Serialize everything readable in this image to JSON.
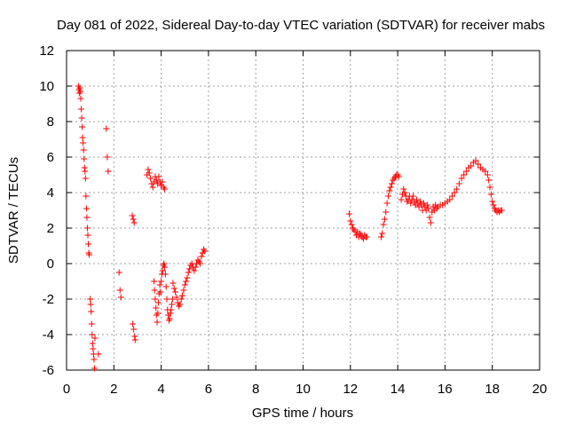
{
  "chart_data": {
    "type": "scatter",
    "title": "Day 081 of 2022, Sidereal Day-to-day VTEC variation (SDTVAR) for receiver mabs",
    "xlabel": "GPS time / hours",
    "ylabel": "SDTVAR / TECUs",
    "xlim": [
      0,
      20
    ],
    "ylim": [
      -6,
      12
    ],
    "grid": true,
    "marker": "+",
    "color": "#ff0000",
    "xticks": [
      {
        "value": 0,
        "label": "0"
      },
      {
        "value": 2,
        "label": "2"
      },
      {
        "value": 4,
        "label": "4"
      },
      {
        "value": 6,
        "label": "6"
      },
      {
        "value": 8,
        "label": "8"
      },
      {
        "value": 10,
        "label": "10"
      },
      {
        "value": 12,
        "label": "12"
      },
      {
        "value": 14,
        "label": "14"
      },
      {
        "value": 16,
        "label": "16"
      },
      {
        "value": 18,
        "label": "18"
      },
      {
        "value": 20,
        "label": "20"
      }
    ],
    "yticks": [
      {
        "value": -6,
        "label": "-6"
      },
      {
        "value": -4,
        "label": "-4"
      },
      {
        "value": -2,
        "label": "-2"
      },
      {
        "value": 0,
        "label": "0"
      },
      {
        "value": 2,
        "label": "2"
      },
      {
        "value": 4,
        "label": "4"
      },
      {
        "value": 6,
        "label": "6"
      },
      {
        "value": 8,
        "label": "8"
      },
      {
        "value": 10,
        "label": "10"
      },
      {
        "value": 12,
        "label": "12"
      }
    ],
    "series": [
      {
        "name": "SDTVAR",
        "points": [
          [
            0.5,
            10.0
          ],
          [
            0.52,
            9.8
          ],
          [
            0.54,
            9.6
          ],
          [
            0.56,
            9.9
          ],
          [
            0.58,
            9.7
          ],
          [
            0.6,
            9.3
          ],
          [
            0.62,
            8.7
          ],
          [
            0.64,
            8.2
          ],
          [
            0.66,
            7.7
          ],
          [
            0.68,
            7.1
          ],
          [
            0.7,
            6.8
          ],
          [
            0.72,
            6.4
          ],
          [
            0.74,
            5.9
          ],
          [
            0.76,
            5.4
          ],
          [
            0.78,
            5.2
          ],
          [
            0.8,
            4.8
          ],
          [
            0.82,
            3.8
          ],
          [
            0.84,
            3.1
          ],
          [
            0.86,
            2.6
          ],
          [
            0.88,
            2.0
          ],
          [
            0.9,
            1.6
          ],
          [
            0.92,
            1.1
          ],
          [
            0.94,
            0.6
          ],
          [
            0.96,
            0.5
          ],
          [
            1.0,
            -2.0
          ],
          [
            1.02,
            -2.3
          ],
          [
            1.04,
            -2.7
          ],
          [
            1.06,
            -3.4
          ],
          [
            1.08,
            -4.0
          ],
          [
            1.1,
            -4.5
          ],
          [
            1.12,
            -4.8
          ],
          [
            1.14,
            -5.1
          ],
          [
            1.16,
            -5.4
          ],
          [
            1.18,
            -5.9
          ],
          [
            1.2,
            -4.2
          ],
          [
            1.35,
            -5.1
          ],
          [
            1.68,
            7.6
          ],
          [
            1.72,
            6.0
          ],
          [
            1.76,
            5.2
          ],
          [
            2.22,
            -0.5
          ],
          [
            2.26,
            -1.5
          ],
          [
            2.3,
            -1.9
          ],
          [
            2.78,
            2.7
          ],
          [
            2.82,
            2.5
          ],
          [
            2.86,
            2.3
          ],
          [
            2.8,
            -3.4
          ],
          [
            2.84,
            -3.7
          ],
          [
            2.88,
            -4.1
          ],
          [
            2.9,
            -4.3
          ],
          [
            3.4,
            5.0
          ],
          [
            3.45,
            5.3
          ],
          [
            3.5,
            5.1
          ],
          [
            3.55,
            4.8
          ],
          [
            3.6,
            4.5
          ],
          [
            3.65,
            4.3
          ],
          [
            3.7,
            4.6
          ],
          [
            3.75,
            4.9
          ],
          [
            3.8,
            4.7
          ],
          [
            3.85,
            4.5
          ],
          [
            3.9,
            4.9
          ],
          [
            3.95,
            4.6
          ],
          [
            4.0,
            4.4
          ],
          [
            4.05,
            4.6
          ],
          [
            4.1,
            4.3
          ],
          [
            4.15,
            4.2
          ],
          [
            3.7,
            -1.0
          ],
          [
            3.72,
            -1.5
          ],
          [
            3.75,
            -2.0
          ],
          [
            3.78,
            -2.5
          ],
          [
            3.8,
            -2.9
          ],
          [
            3.83,
            -3.3
          ],
          [
            3.86,
            -2.8
          ],
          [
            3.88,
            -2.2
          ],
          [
            3.91,
            -1.7
          ],
          [
            3.94,
            -1.2
          ],
          [
            3.97,
            -1.6
          ],
          [
            4.0,
            -1.0
          ],
          [
            4.03,
            -0.6
          ],
          [
            4.06,
            -0.4
          ],
          [
            4.09,
            -0.1
          ],
          [
            4.12,
            0.0
          ],
          [
            4.15,
            -0.2
          ],
          [
            4.18,
            -0.6
          ],
          [
            4.21,
            -1.3
          ],
          [
            4.24,
            -2.0
          ],
          [
            4.27,
            -2.6
          ],
          [
            4.3,
            -2.9
          ],
          [
            4.33,
            -3.2
          ],
          [
            4.36,
            -3.1
          ],
          [
            4.39,
            -2.8
          ],
          [
            4.42,
            -2.6
          ],
          [
            4.45,
            -2.3
          ],
          [
            4.48,
            -2.0
          ],
          [
            4.5,
            -1.1
          ],
          [
            4.55,
            -1.4
          ],
          [
            4.6,
            -1.6
          ],
          [
            4.65,
            -1.9
          ],
          [
            4.7,
            -2.2
          ],
          [
            4.75,
            -2.4
          ],
          [
            4.8,
            -2.3
          ],
          [
            4.85,
            -2.0
          ],
          [
            4.9,
            -1.8
          ],
          [
            4.95,
            -1.5
          ],
          [
            5.0,
            -1.2
          ],
          [
            5.05,
            -1.0
          ],
          [
            5.1,
            -0.8
          ],
          [
            5.15,
            -0.5
          ],
          [
            5.2,
            -0.3
          ],
          [
            5.25,
            -0.1
          ],
          [
            5.3,
            0.0
          ],
          [
            5.35,
            -0.2
          ],
          [
            5.4,
            -0.4
          ],
          [
            5.45,
            -0.2
          ],
          [
            5.5,
            0.0
          ],
          [
            5.55,
            0.2
          ],
          [
            5.6,
            0.1
          ],
          [
            5.65,
            0.0
          ],
          [
            5.7,
            0.4
          ],
          [
            5.75,
            0.6
          ],
          [
            5.8,
            0.8
          ],
          [
            5.85,
            0.7
          ],
          [
            11.95,
            2.8
          ],
          [
            12.0,
            2.4
          ],
          [
            12.05,
            2.2
          ],
          [
            12.1,
            2.0
          ],
          [
            12.15,
            1.9
          ],
          [
            12.2,
            1.8
          ],
          [
            12.25,
            1.6
          ],
          [
            12.3,
            1.8
          ],
          [
            12.35,
            1.5
          ],
          [
            12.4,
            1.7
          ],
          [
            12.45,
            1.6
          ],
          [
            12.5,
            1.5
          ],
          [
            12.55,
            1.4
          ],
          [
            12.6,
            1.6
          ],
          [
            12.65,
            1.5
          ],
          [
            12.7,
            1.5
          ],
          [
            13.3,
            1.5
          ],
          [
            13.35,
            1.7
          ],
          [
            13.4,
            2.2
          ],
          [
            13.45,
            2.5
          ],
          [
            13.5,
            2.9
          ],
          [
            13.55,
            3.4
          ],
          [
            13.6,
            3.8
          ],
          [
            13.65,
            4.1
          ],
          [
            13.7,
            4.3
          ],
          [
            13.75,
            4.5
          ],
          [
            13.8,
            4.7
          ],
          [
            13.85,
            4.8
          ],
          [
            13.9,
            4.9
          ],
          [
            13.95,
            5.0
          ],
          [
            14.0,
            5.0
          ],
          [
            14.05,
            4.9
          ],
          [
            14.15,
            3.6
          ],
          [
            14.2,
            3.9
          ],
          [
            14.25,
            4.2
          ],
          [
            14.3,
            4.0
          ],
          [
            14.35,
            3.8
          ],
          [
            14.4,
            3.5
          ],
          [
            14.45,
            3.6
          ],
          [
            14.5,
            3.8
          ],
          [
            14.55,
            3.4
          ],
          [
            14.6,
            3.6
          ],
          [
            14.65,
            3.8
          ],
          [
            14.7,
            3.5
          ],
          [
            14.75,
            3.3
          ],
          [
            14.8,
            3.6
          ],
          [
            14.85,
            3.4
          ],
          [
            14.9,
            3.2
          ],
          [
            14.95,
            3.5
          ],
          [
            15.0,
            3.3
          ],
          [
            15.05,
            3.0
          ],
          [
            15.1,
            3.4
          ],
          [
            15.15,
            3.2
          ],
          [
            15.2,
            3.0
          ],
          [
            15.25,
            3.3
          ],
          [
            15.3,
            3.1
          ],
          [
            15.35,
            2.6
          ],
          [
            15.4,
            2.3
          ],
          [
            15.45,
            2.9
          ],
          [
            15.5,
            3.2
          ],
          [
            15.55,
            3.0
          ],
          [
            15.6,
            3.3
          ],
          [
            15.65,
            3.1
          ],
          [
            15.7,
            3.2
          ],
          [
            15.8,
            3.3
          ],
          [
            15.9,
            3.3
          ],
          [
            16.0,
            3.4
          ],
          [
            16.1,
            3.5
          ],
          [
            16.2,
            3.6
          ],
          [
            16.3,
            3.8
          ],
          [
            16.4,
            4.0
          ],
          [
            16.5,
            4.2
          ],
          [
            16.6,
            4.5
          ],
          [
            16.7,
            4.8
          ],
          [
            16.8,
            5.0
          ],
          [
            16.9,
            5.2
          ],
          [
            17.0,
            5.4
          ],
          [
            17.1,
            5.5
          ],
          [
            17.2,
            5.7
          ],
          [
            17.3,
            5.8
          ],
          [
            17.4,
            5.6
          ],
          [
            17.5,
            5.4
          ],
          [
            17.6,
            5.3
          ],
          [
            17.7,
            5.2
          ],
          [
            17.8,
            5.0
          ],
          [
            17.85,
            4.7
          ],
          [
            17.9,
            4.3
          ],
          [
            17.95,
            3.9
          ],
          [
            18.0,
            3.5
          ],
          [
            18.05,
            3.3
          ],
          [
            18.1,
            3.1
          ],
          [
            18.15,
            3.0
          ],
          [
            18.2,
            2.9
          ],
          [
            18.25,
            3.0
          ],
          [
            18.3,
            2.9
          ],
          [
            18.35,
            3.0
          ],
          [
            18.4,
            3.0
          ]
        ]
      }
    ]
  }
}
